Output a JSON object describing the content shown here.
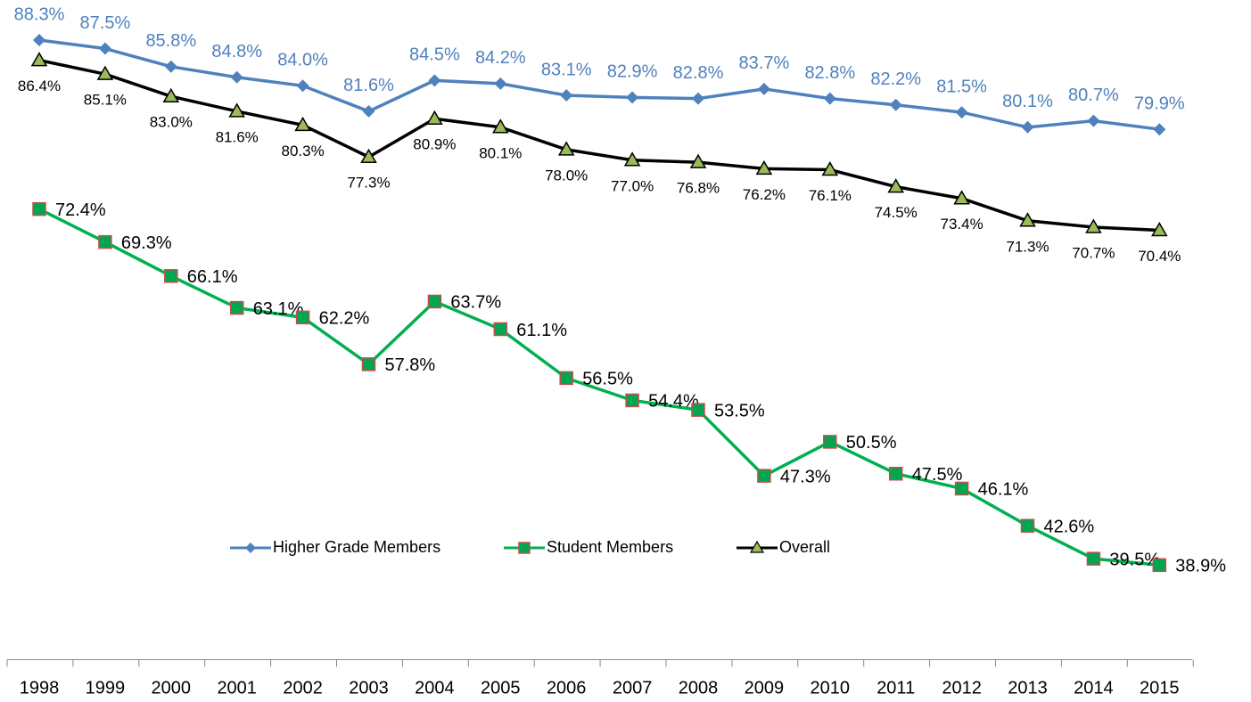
{
  "chart_data": {
    "type": "line",
    "categories": [
      "1998",
      "1999",
      "2000",
      "2001",
      "2002",
      "2003",
      "2004",
      "2005",
      "2006",
      "2007",
      "2008",
      "2009",
      "2010",
      "2011",
      "2012",
      "2013",
      "2014",
      "2015"
    ],
    "ylim": [
      30,
      90
    ],
    "series": [
      {
        "name": "Higher Grade Members",
        "color": "#4f81bd",
        "marker": "diamond",
        "values": [
          88.3,
          87.5,
          85.8,
          84.8,
          84.0,
          81.6,
          84.5,
          84.2,
          83.1,
          82.9,
          82.8,
          83.7,
          82.8,
          82.2,
          81.5,
          80.1,
          80.7,
          79.9
        ],
        "value_labels": [
          "88.3%",
          "87.5%",
          "85.8%",
          "84.8%",
          "84.0%",
          "81.6%",
          "84.5%",
          "84.2%",
          "83.1%",
          "82.9%",
          "82.8%",
          "83.7%",
          "82.8%",
          "82.2%",
          "81.5%",
          "80.1%",
          "80.7%",
          "79.9%"
        ]
      },
      {
        "name": "Student Members",
        "color": "#00b050",
        "marker": "square",
        "values": [
          72.4,
          69.3,
          66.1,
          63.1,
          62.2,
          57.8,
          63.7,
          61.1,
          56.5,
          54.4,
          53.5,
          47.3,
          50.5,
          47.5,
          46.1,
          42.6,
          39.5,
          38.9
        ],
        "value_labels": [
          "72.4%",
          "69.3%",
          "66.1%",
          "63.1%",
          "62.2%",
          "57.8%",
          "63.7%",
          "61.1%",
          "56.5%",
          "54.4%",
          "53.5%",
          "47.3%",
          "50.5%",
          "47.5%",
          "46.1%",
          "42.6%",
          "39.5%",
          "38.9%"
        ]
      },
      {
        "name": "Overall",
        "color": "#000000",
        "marker": "triangle",
        "values": [
          86.4,
          85.1,
          83.0,
          81.6,
          80.3,
          77.3,
          80.9,
          80.1,
          78.0,
          77.0,
          76.8,
          76.2,
          76.1,
          74.5,
          73.4,
          71.3,
          70.7,
          70.4
        ],
        "value_labels": [
          "86.4%",
          "85.1%",
          "83.0%",
          "81.6%",
          "80.3%",
          "77.3%",
          "80.9%",
          "80.1%",
          "78.0%",
          "77.0%",
          "76.8%",
          "76.2%",
          "76.1%",
          "74.5%",
          "73.4%",
          "71.3%",
          "70.7%",
          "70.4%"
        ]
      }
    ]
  }
}
